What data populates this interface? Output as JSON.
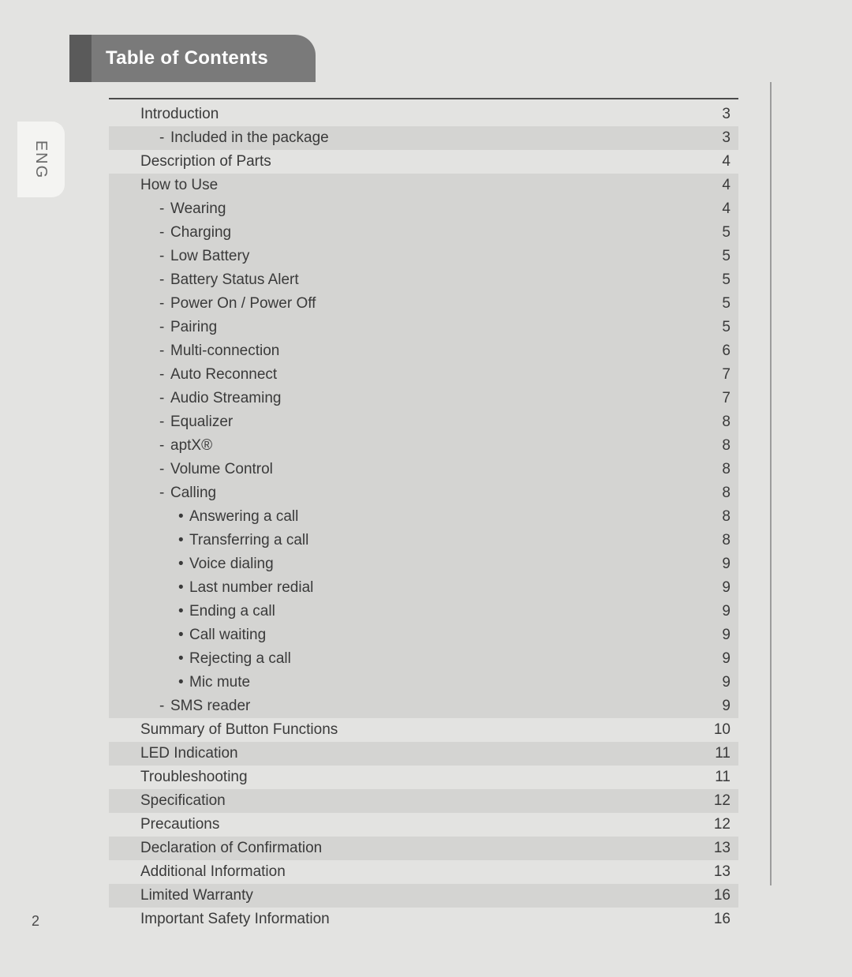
{
  "header": {
    "title": "Table of Contents"
  },
  "language_tab": "ENG",
  "page_number": "2",
  "colors": {
    "page_bg": "#e3e3e1",
    "shade_bg": "#d4d4d2",
    "tab_dark": "#5a5a5a",
    "tab_main": "#7a7a7a",
    "rule": "#4a4a4a",
    "text": "#3a3a3a",
    "lang_bg": "#f4f4f2"
  },
  "typography": {
    "title_fontsize_pt": 18,
    "body_fontsize_pt": 14,
    "font_family": "Arial"
  },
  "toc": [
    {
      "label": "Introduction",
      "page": "3",
      "level": 0,
      "shaded": false
    },
    {
      "label": "Included in the package",
      "page": "3",
      "level": 1,
      "shaded": true,
      "prefix": "dash"
    },
    {
      "label": "Description of Parts",
      "page": "4",
      "level": 0,
      "shaded": false
    },
    {
      "label": "How to Use",
      "page": "4",
      "level": 0,
      "shaded": true
    },
    {
      "label": "Wearing",
      "page": "4",
      "level": 1,
      "shaded": true,
      "prefix": "dash"
    },
    {
      "label": "Charging",
      "page": "5",
      "level": 1,
      "shaded": true,
      "prefix": "dash"
    },
    {
      "label": "Low Battery",
      "page": "5",
      "level": 1,
      "shaded": true,
      "prefix": "dash"
    },
    {
      "label": "Battery Status Alert",
      "page": "5",
      "level": 1,
      "shaded": true,
      "prefix": "dash"
    },
    {
      "label": "Power On / Power Off",
      "page": "5",
      "level": 1,
      "shaded": true,
      "prefix": "dash"
    },
    {
      "label": "Pairing",
      "page": "5",
      "level": 1,
      "shaded": true,
      "prefix": "dash"
    },
    {
      "label": "Multi-connection",
      "page": "6",
      "level": 1,
      "shaded": true,
      "prefix": "dash"
    },
    {
      "label": "Auto Reconnect",
      "page": "7",
      "level": 1,
      "shaded": true,
      "prefix": "dash"
    },
    {
      "label": "Audio Streaming",
      "page": "7",
      "level": 1,
      "shaded": true,
      "prefix": "dash"
    },
    {
      "label": "Equalizer",
      "page": "8",
      "level": 1,
      "shaded": true,
      "prefix": "dash"
    },
    {
      "label": "aptX®",
      "page": "8",
      "level": 1,
      "shaded": true,
      "prefix": "dash"
    },
    {
      "label": "Volume Control",
      "page": "8",
      "level": 1,
      "shaded": true,
      "prefix": "dash"
    },
    {
      "label": "Calling",
      "page": "8",
      "level": 1,
      "shaded": true,
      "prefix": "dash"
    },
    {
      "label": "Answering a call",
      "page": "8",
      "level": 2,
      "shaded": true,
      "prefix": "bullet"
    },
    {
      "label": "Transferring a call",
      "page": "8",
      "level": 2,
      "shaded": true,
      "prefix": "bullet"
    },
    {
      "label": "Voice dialing",
      "page": "9",
      "level": 2,
      "shaded": true,
      "prefix": "bullet"
    },
    {
      "label": "Last number redial",
      "page": "9",
      "level": 2,
      "shaded": true,
      "prefix": "bullet"
    },
    {
      "label": "Ending a call",
      "page": "9",
      "level": 2,
      "shaded": true,
      "prefix": "bullet"
    },
    {
      "label": "Call waiting",
      "page": "9",
      "level": 2,
      "shaded": true,
      "prefix": "bullet"
    },
    {
      "label": "Rejecting a call",
      "page": "9",
      "level": 2,
      "shaded": true,
      "prefix": "bullet"
    },
    {
      "label": "Mic mute",
      "page": "9",
      "level": 2,
      "shaded": true,
      "prefix": "bullet"
    },
    {
      "label": "SMS reader",
      "page": "9",
      "level": 1,
      "shaded": true,
      "prefix": "dash"
    },
    {
      "label": "Summary of Button Functions",
      "page": "10",
      "level": 0,
      "shaded": false
    },
    {
      "label": "LED Indication",
      "page": "11",
      "level": 0,
      "shaded": true
    },
    {
      "label": "Troubleshooting",
      "page": "11",
      "level": 0,
      "shaded": false
    },
    {
      "label": "Specification",
      "page": "12",
      "level": 0,
      "shaded": true
    },
    {
      "label": "Precautions",
      "page": "12",
      "level": 0,
      "shaded": false
    },
    {
      "label": "Declaration of Confirmation",
      "page": "13",
      "level": 0,
      "shaded": true
    },
    {
      "label": "Additional Information",
      "page": "13",
      "level": 0,
      "shaded": false
    },
    {
      "label": "Limited Warranty",
      "page": "16",
      "level": 0,
      "shaded": true
    },
    {
      "label": "Important Safety Information",
      "page": "16",
      "level": 0,
      "shaded": false
    }
  ]
}
